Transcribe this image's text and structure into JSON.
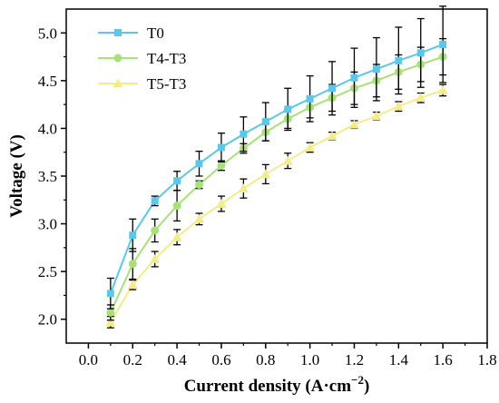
{
  "chart_data": {
    "type": "line",
    "xlabel": "Current density (A·cm",
    "xlabel_sup": "−2",
    "xlabel_end": ")",
    "ylabel": "Voltage (V)",
    "xlim": [
      -0.1,
      1.8
    ],
    "ylim": [
      1.75,
      5.25
    ],
    "xticks": [
      "0.0",
      "0.2",
      "0.4",
      "0.6",
      "0.8",
      "1.0",
      "1.2",
      "1.4",
      "1.6",
      "1.8"
    ],
    "yticks": [
      "2.0",
      "2.5",
      "3.0",
      "3.5",
      "4.0",
      "4.5",
      "5.0"
    ],
    "x": [
      0.1,
      0.2,
      0.3,
      0.4,
      0.5,
      0.6,
      0.7,
      0.8,
      0.9,
      1.0,
      1.1,
      1.2,
      1.3,
      1.4,
      1.5,
      1.6
    ],
    "legend_position": "top-left",
    "series": [
      {
        "name": "T0",
        "color": "#5bc8e8",
        "marker": "square",
        "values": [
          2.27,
          2.88,
          3.24,
          3.45,
          3.63,
          3.8,
          3.94,
          4.07,
          4.2,
          4.31,
          4.42,
          4.53,
          4.62,
          4.71,
          4.79,
          4.88
        ],
        "errors": [
          0.16,
          0.17,
          0.05,
          0.1,
          0.13,
          0.15,
          0.18,
          0.2,
          0.22,
          0.24,
          0.28,
          0.31,
          0.33,
          0.35,
          0.36,
          0.4
        ]
      },
      {
        "name": "T4-T3",
        "color": "#a8e07a",
        "marker": "circle",
        "values": [
          2.07,
          2.58,
          2.93,
          3.19,
          3.41,
          3.61,
          3.79,
          3.96,
          4.1,
          4.22,
          4.32,
          4.42,
          4.5,
          4.59,
          4.67,
          4.75
        ],
        "errors": [
          0.08,
          0.16,
          0.12,
          0.16,
          0.04,
          0.05,
          0.05,
          0.09,
          0.1,
          0.11,
          0.14,
          0.17,
          0.17,
          0.18,
          0.18,
          0.19
        ]
      },
      {
        "name": "T5-T3",
        "color": "#f4ec8a",
        "marker": "triangle",
        "values": [
          1.97,
          2.36,
          2.63,
          2.86,
          3.05,
          3.21,
          3.37,
          3.52,
          3.66,
          3.8,
          3.92,
          4.04,
          4.13,
          4.23,
          4.32,
          4.4
        ],
        "errors": [
          0.06,
          0.05,
          0.08,
          0.08,
          0.06,
          0.08,
          0.1,
          0.1,
          0.08,
          0.05,
          0.04,
          0.04,
          0.04,
          0.05,
          0.05,
          0.06
        ]
      }
    ]
  }
}
